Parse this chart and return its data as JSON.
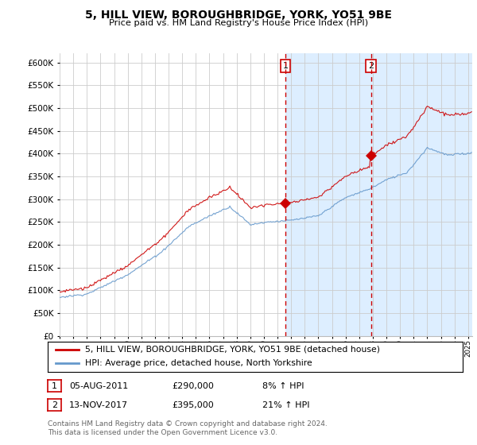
{
  "title": "5, HILL VIEW, BOROUGHBRIDGE, YORK, YO51 9BE",
  "subtitle": "Price paid vs. HM Land Registry's House Price Index (HPI)",
  "legend_line1": "5, HILL VIEW, BOROUGHBRIDGE, YORK, YO51 9BE (detached house)",
  "legend_line2": "HPI: Average price, detached house, North Yorkshire",
  "footer1": "Contains HM Land Registry data © Crown copyright and database right 2024.",
  "footer2": "This data is licensed under the Open Government Licence v3.0.",
  "annotation1_label": "1",
  "annotation1_date": "05-AUG-2011",
  "annotation1_price": "£290,000",
  "annotation1_hpi": "8% ↑ HPI",
  "annotation2_label": "2",
  "annotation2_date": "13-NOV-2017",
  "annotation2_price": "£395,000",
  "annotation2_hpi": "21% ↑ HPI",
  "sale1_year": 2011.58,
  "sale1_value": 290000,
  "sale2_year": 2017.87,
  "sale2_value": 395000,
  "vline1_year": 2011.58,
  "vline2_year": 2017.87,
  "ylim_min": 0,
  "ylim_max": 620000,
  "xlim_start": 1995.0,
  "xlim_end": 2025.3,
  "red_color": "#cc0000",
  "blue_color": "#6699cc",
  "plot_bg": "#ffffff",
  "grid_color": "#cccccc",
  "span_color": "#ddeeff",
  "vline_color": "#cc0000"
}
